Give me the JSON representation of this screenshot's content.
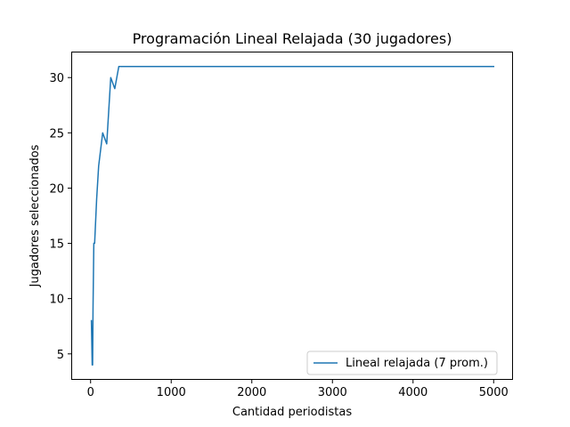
{
  "chart_data": {
    "type": "line",
    "title": "Programación Lineal Relajada (30 jugadores)",
    "xlabel": "Cantidad periodistas",
    "ylabel": "Jugadores seleccionados",
    "xlim": [
      -240,
      5240
    ],
    "ylim": [
      2.65,
      32.35
    ],
    "xticks": [
      0,
      1000,
      2000,
      3000,
      4000,
      5000
    ],
    "yticks": [
      5,
      10,
      15,
      20,
      25,
      30
    ],
    "grid": false,
    "legend_position": "lower right",
    "series": [
      {
        "name": "Lineal relajada  (7 prom.)",
        "color": "#1f77b4",
        "x": [
          10,
          20,
          25,
          30,
          40,
          50,
          75,
          100,
          150,
          200,
          225,
          250,
          300,
          350,
          400,
          500,
          1000,
          1500,
          2000,
          2500,
          3000,
          3500,
          4000,
          4500,
          5000
        ],
        "y": [
          8,
          4,
          4,
          9,
          15,
          15,
          19,
          22,
          25,
          24,
          27,
          30,
          29,
          31,
          31,
          31,
          31,
          31,
          31,
          31,
          31,
          31,
          31,
          31,
          31
        ]
      }
    ]
  }
}
